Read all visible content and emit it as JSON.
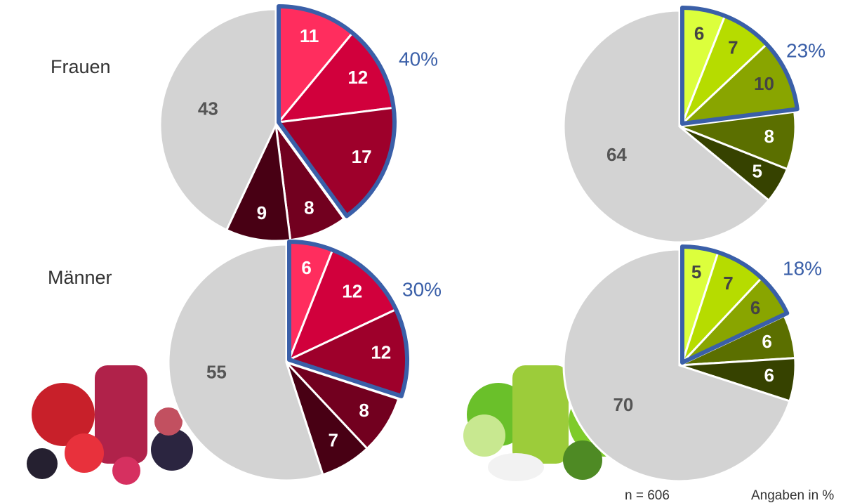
{
  "row_labels": [
    "Frauen",
    "Männer"
  ],
  "footer": {
    "n": "n = 606",
    "unit": "Angaben in %"
  },
  "chart_data": [
    {
      "type": "pie",
      "values": [
        11,
        12,
        17,
        8,
        9,
        43
      ],
      "colors": [
        "#ff2d5e",
        "#d1003c",
        "#9e002b",
        "#72001f",
        "#480014",
        "#d3d3d3"
      ],
      "label_colors": [
        "#ffffff",
        "#ffffff",
        "#ffffff",
        "#ffffff",
        "#ffffff",
        "#555555"
      ],
      "highlight": 3,
      "annotation": "40%"
    },
    {
      "type": "pie",
      "values": [
        6,
        12,
        12,
        8,
        7,
        55
      ],
      "colors": [
        "#ff2d5e",
        "#d1003c",
        "#9e002b",
        "#72001f",
        "#480014",
        "#d3d3d3"
      ],
      "label_colors": [
        "#ffffff",
        "#ffffff",
        "#ffffff",
        "#ffffff",
        "#ffffff",
        "#555555"
      ],
      "highlight": 3,
      "annotation": "30%"
    },
    {
      "type": "pie",
      "values": [
        6,
        7,
        10,
        8,
        5,
        64
      ],
      "colors": [
        "#dcff3c",
        "#b6dc00",
        "#89a500",
        "#5b6f00",
        "#364200",
        "#d3d3d3"
      ],
      "label_colors": [
        "#444444",
        "#444444",
        "#444444",
        "#ffffff",
        "#ffffff",
        "#555555"
      ],
      "highlight": 3,
      "annotation": "23%"
    },
    {
      "type": "pie",
      "values": [
        5,
        7,
        6,
        6,
        6,
        70
      ],
      "colors": [
        "#dcff3c",
        "#b6dc00",
        "#89a500",
        "#5b6f00",
        "#364200",
        "#d3d3d3"
      ],
      "label_colors": [
        "#444444",
        "#444444",
        "#444444",
        "#ffffff",
        "#ffffff",
        "#555555"
      ],
      "highlight": 3,
      "annotation": "18%"
    }
  ]
}
